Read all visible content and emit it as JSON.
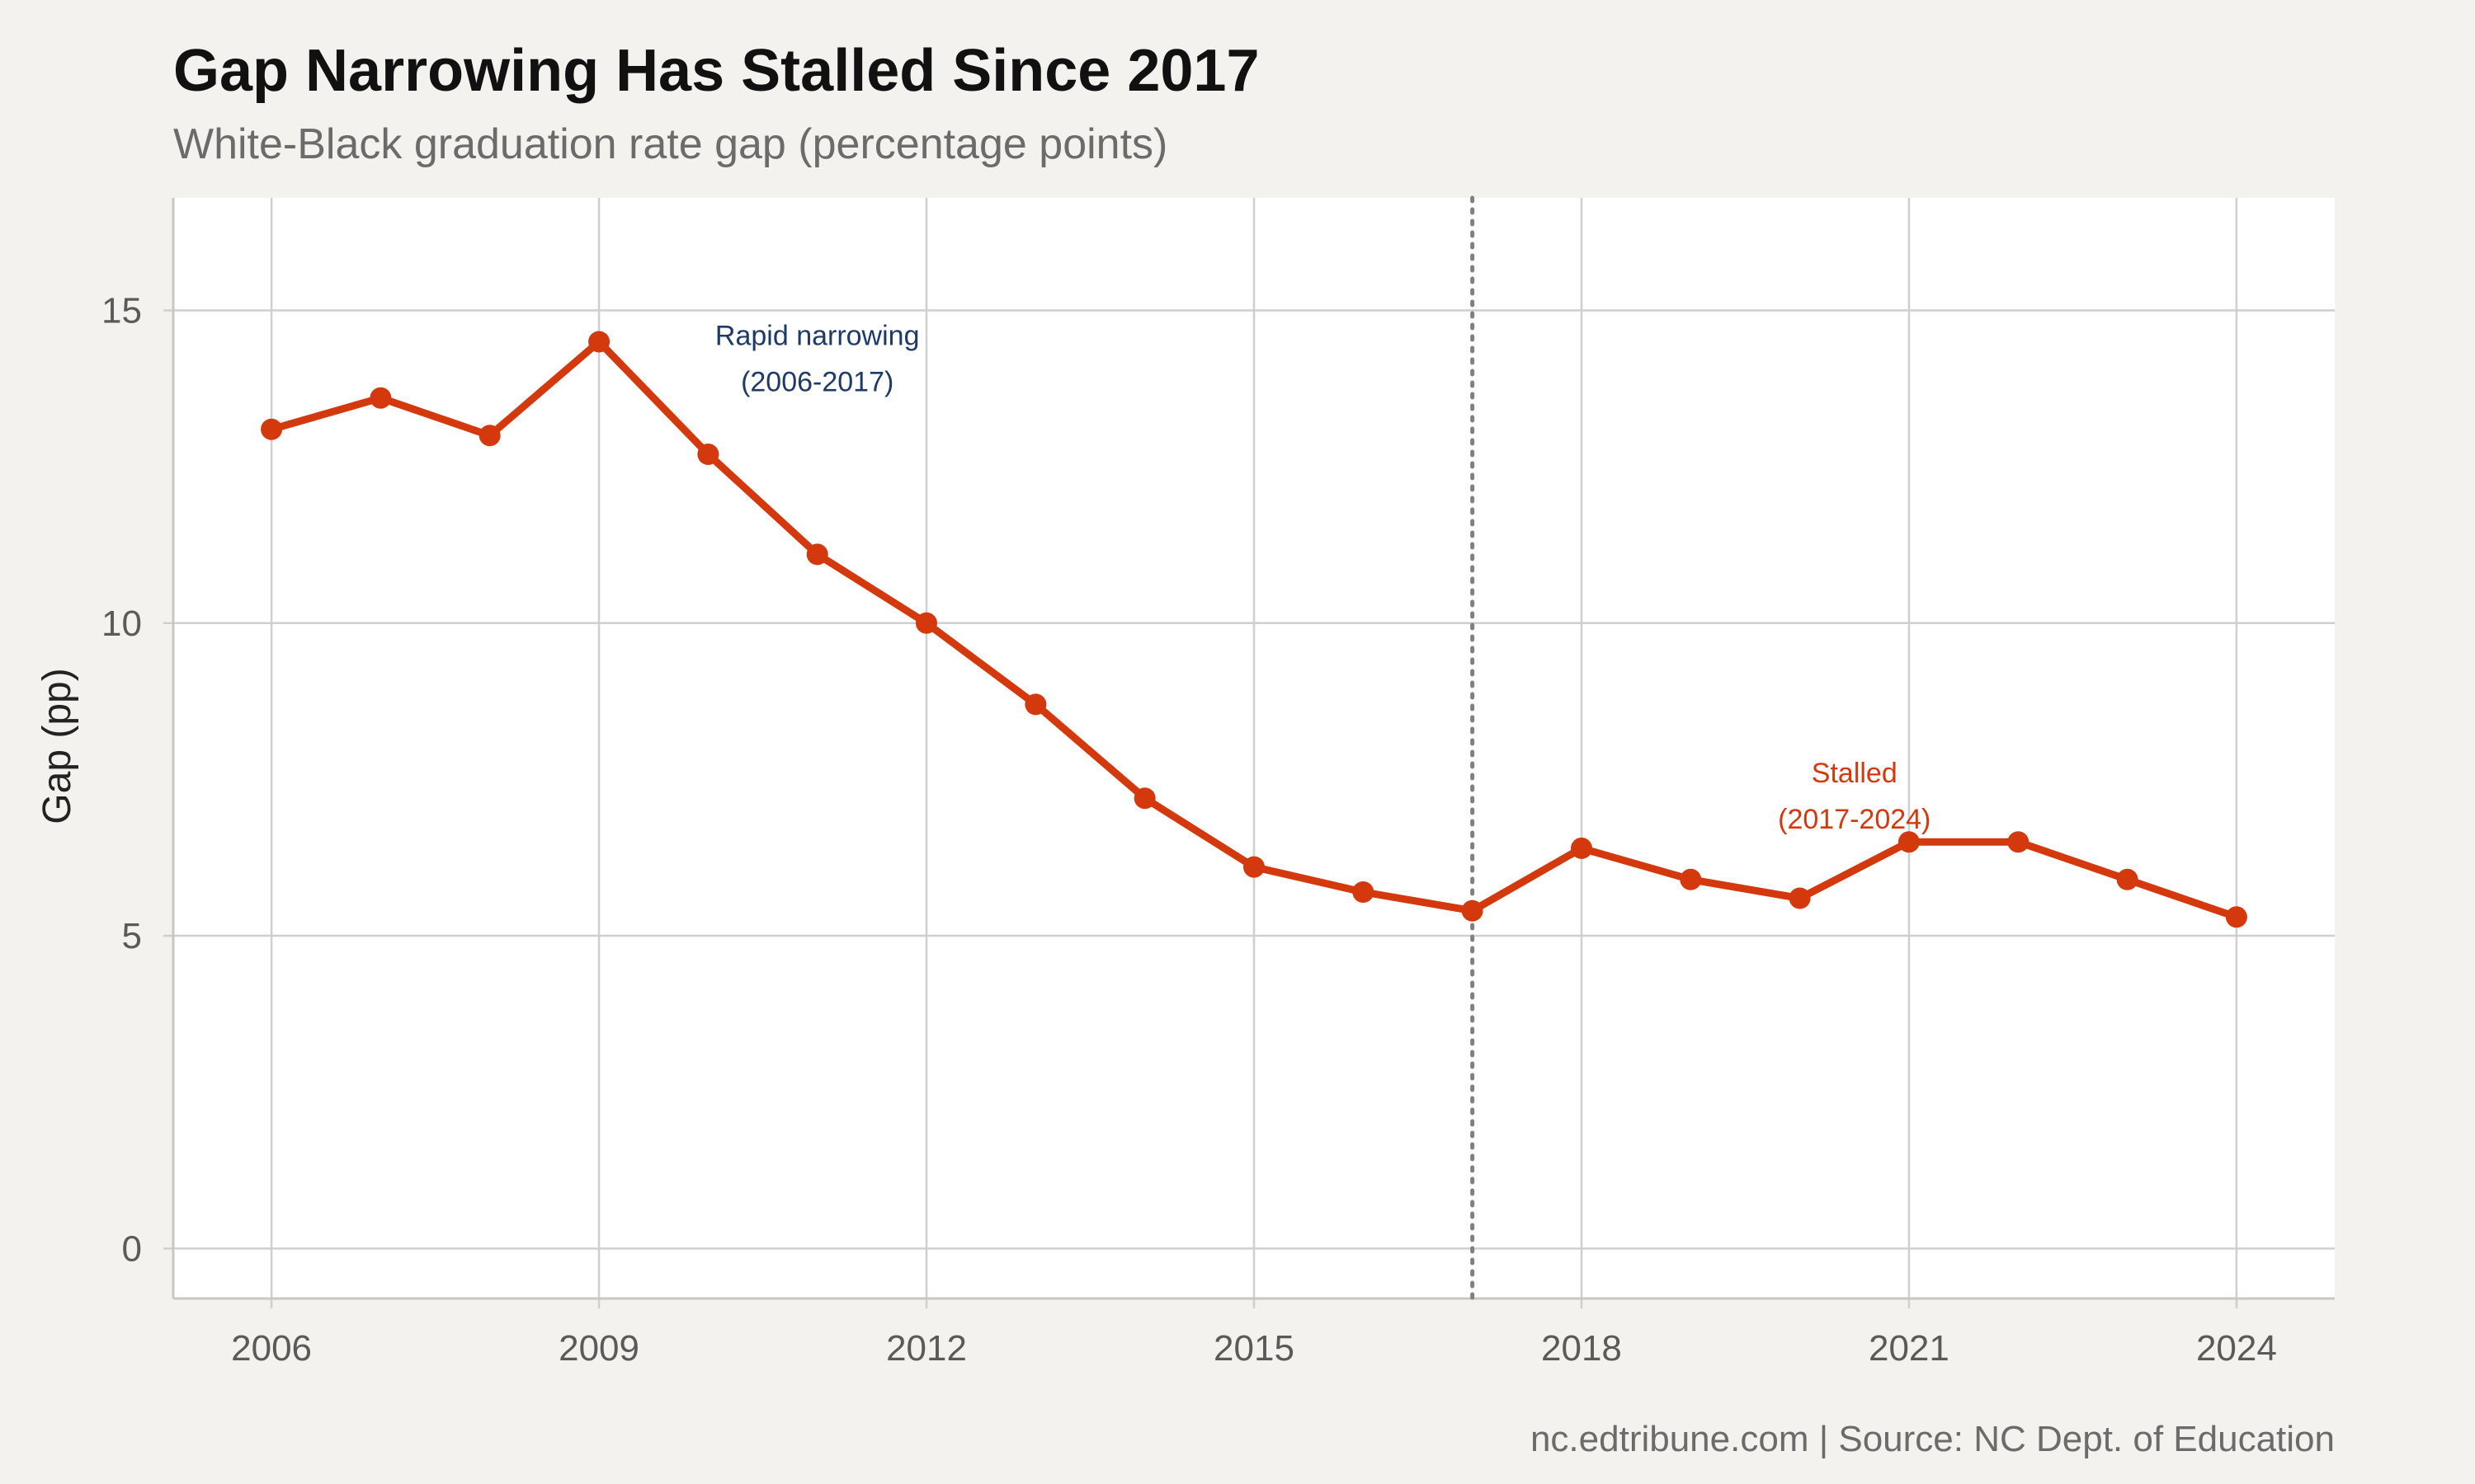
{
  "chart_data": {
    "type": "line",
    "title": "Gap Narrowing Has Stalled Since 2017",
    "subtitle": "White-Black graduation rate gap (percentage points)",
    "ylabel": "Gap (pp)",
    "xlabel": "",
    "caption": "nc.edtribune.com | Source: NC Dept. of Education",
    "x": [
      2006,
      2007,
      2008,
      2009,
      2010,
      2011,
      2012,
      2013,
      2014,
      2015,
      2016,
      2017,
      2018,
      2019,
      2020,
      2021,
      2022,
      2023,
      2024
    ],
    "series": [
      {
        "values": [
          13.1,
          13.6,
          13.0,
          14.5,
          12.7,
          11.1,
          10.0,
          8.7,
          7.2,
          6.1,
          5.7,
          5.4,
          6.4,
          5.9,
          5.6,
          6.5,
          6.5,
          5.9,
          5.3
        ]
      }
    ],
    "xlim": [
      2005.1,
      2024.9
    ],
    "ylim": [
      -0.8,
      16.8
    ],
    "xticks": [
      "2006",
      "2009",
      "2012",
      "2015",
      "2018",
      "2021",
      "2024"
    ],
    "yticks": [
      "0",
      "5",
      "10",
      "15"
    ],
    "grid": true,
    "vline": 2017,
    "annotations": [
      {
        "lines": [
          "Rapid narrowing",
          "(2006-2017)"
        ],
        "x": 2011,
        "y": 14.45
      },
      {
        "lines": [
          "Stalled",
          "(2017-2024)"
        ],
        "x": 2020.5,
        "y": 7.45
      }
    ],
    "colors": {
      "line": "#d4380d",
      "vline": "#808080",
      "grid": "#cfcfcf",
      "panel": "#ffffff",
      "annotation_early": "#1f3a68",
      "annotation_late": "#d4380d"
    }
  }
}
